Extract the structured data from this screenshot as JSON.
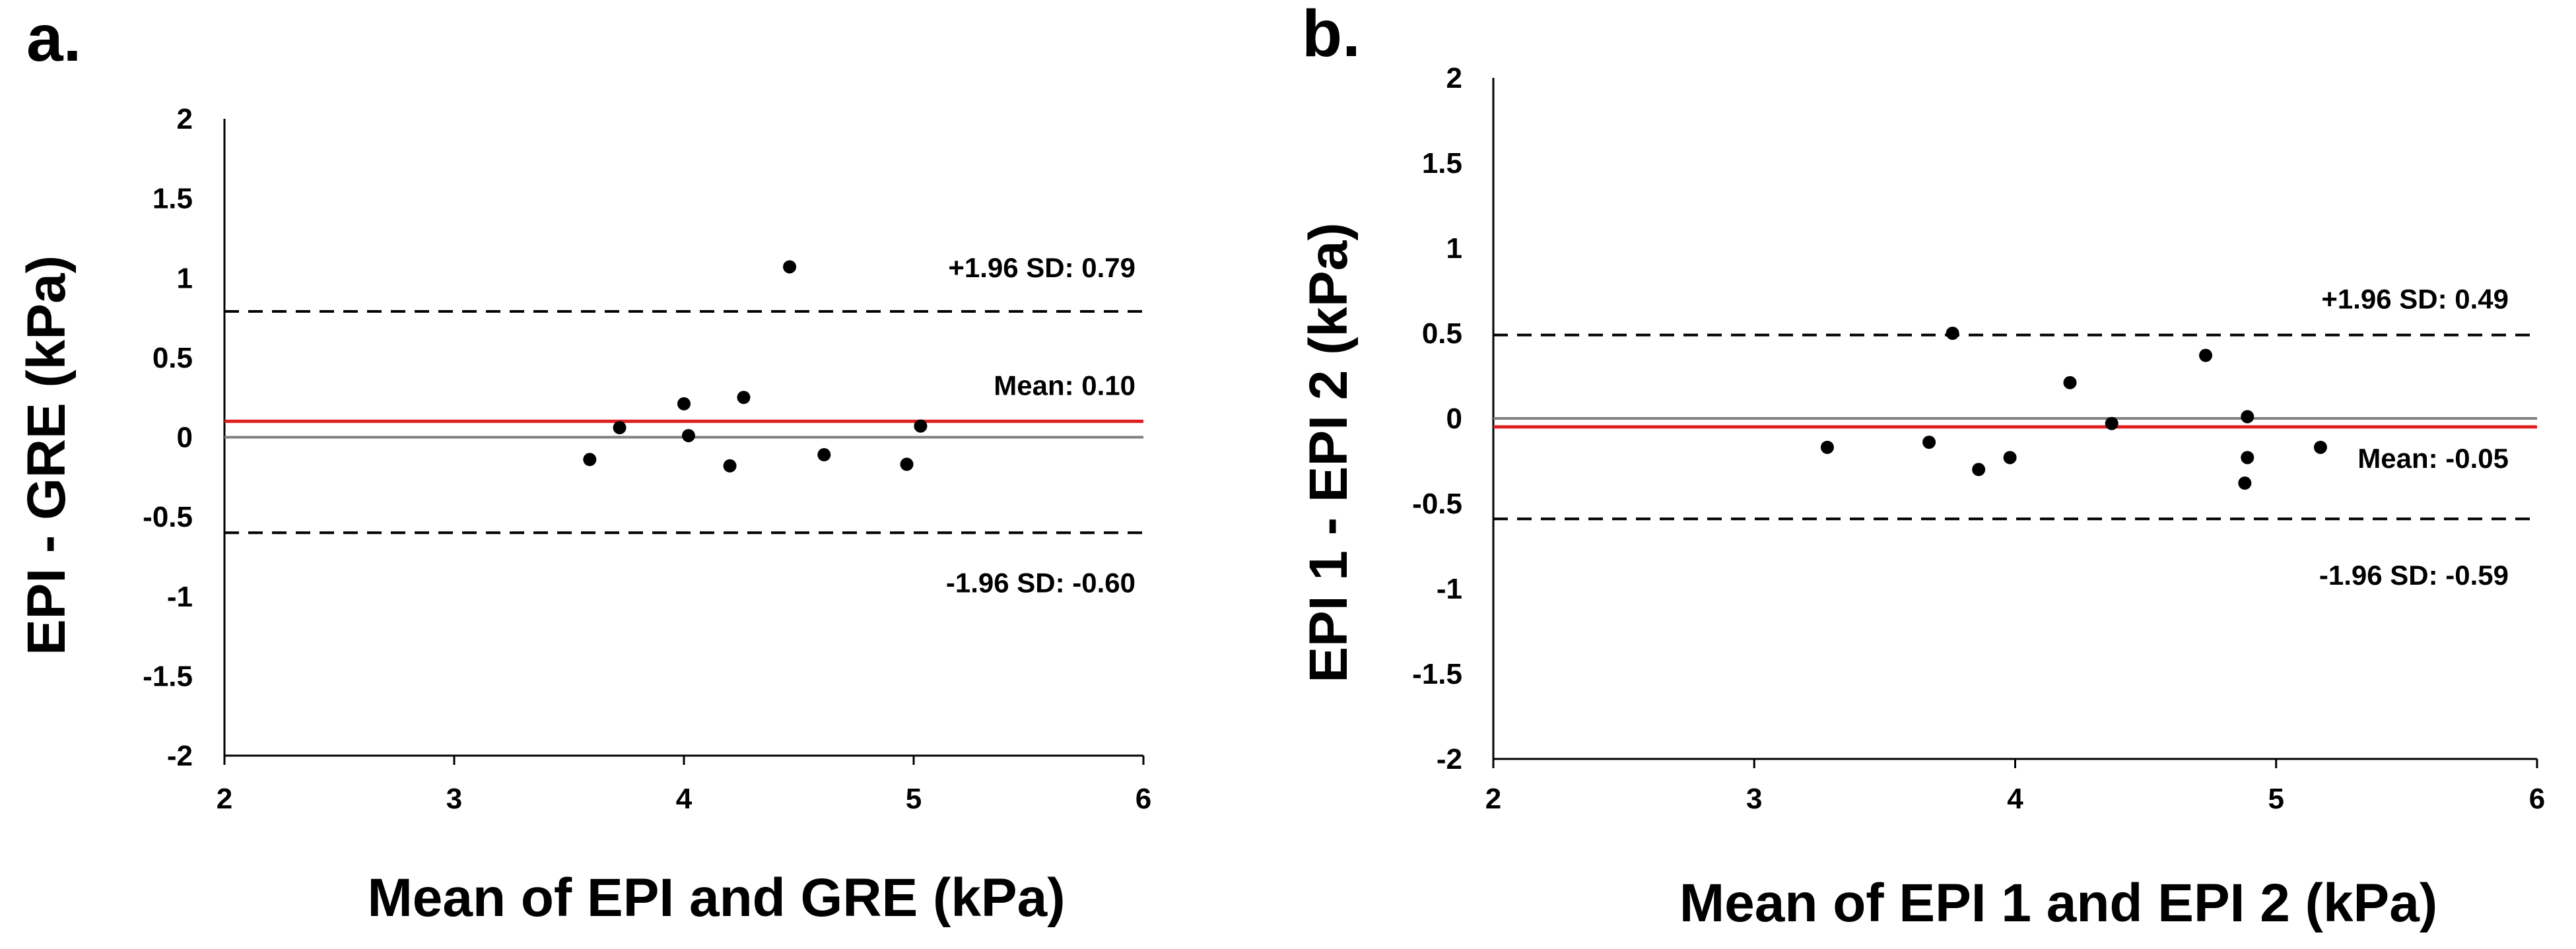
{
  "chart_data": [
    {
      "type": "scatter",
      "panel_label": "a.",
      "title": "",
      "xlabel": "Mean of EPI and GRE (kPa)",
      "ylabel": "EPI - GRE (kPa)",
      "xlim": [
        2,
        6
      ],
      "ylim": [
        -2,
        2
      ],
      "xticks": [
        2,
        3,
        4,
        5,
        6
      ],
      "yticks": [
        -2,
        -1.5,
        -1,
        -0.5,
        0,
        0.5,
        1,
        1.5,
        2
      ],
      "zero_line": 0,
      "mean": 0.1,
      "upper_loa": 0.79,
      "lower_loa": -0.6,
      "mean_label": "Mean: 0.10",
      "upper_label": "+1.96 SD: 0.79",
      "lower_label": "-1.96 SD: -0.60",
      "mean_color": "#e02020",
      "points": [
        {
          "x": 3.59,
          "y": -0.14
        },
        {
          "x": 3.72,
          "y": 0.06
        },
        {
          "x": 4.0,
          "y": 0.21
        },
        {
          "x": 4.02,
          "y": 0.01
        },
        {
          "x": 4.2,
          "y": -0.18
        },
        {
          "x": 4.26,
          "y": 0.25
        },
        {
          "x": 4.46,
          "y": 1.07
        },
        {
          "x": 4.61,
          "y": -0.11
        },
        {
          "x": 4.97,
          "y": -0.17
        },
        {
          "x": 5.03,
          "y": 0.07
        }
      ]
    },
    {
      "type": "scatter",
      "panel_label": "b.",
      "title": "",
      "xlabel": "Mean of EPI 1 and EPI 2 (kPa)",
      "ylabel": "EPI 1 - EPI 2 (kPa)",
      "xlim": [
        2,
        6
      ],
      "ylim": [
        -2,
        2
      ],
      "xticks": [
        2,
        3,
        4,
        5,
        6
      ],
      "yticks": [
        -2,
        -1.5,
        -1,
        -0.5,
        0,
        0.5,
        1,
        1.5,
        2
      ],
      "zero_line": 0,
      "mean": -0.05,
      "upper_loa": 0.49,
      "lower_loa": -0.59,
      "mean_label": "Mean: -0.05",
      "upper_label": "+1.96 SD: 0.49",
      "lower_label": "-1.96 SD: -0.59",
      "mean_color": "#e02020",
      "points": [
        {
          "x": 3.28,
          "y": -0.17
        },
        {
          "x": 3.67,
          "y": -0.14
        },
        {
          "x": 3.76,
          "y": 0.5
        },
        {
          "x": 3.86,
          "y": -0.3
        },
        {
          "x": 3.98,
          "y": -0.23
        },
        {
          "x": 4.21,
          "y": 0.21
        },
        {
          "x": 4.37,
          "y": -0.03
        },
        {
          "x": 4.73,
          "y": 0.37
        },
        {
          "x": 4.88,
          "y": -0.38
        },
        {
          "x": 4.89,
          "y": 0.01
        },
        {
          "x": 4.89,
          "y": -0.23
        },
        {
          "x": 5.17,
          "y": -0.17
        }
      ]
    }
  ]
}
